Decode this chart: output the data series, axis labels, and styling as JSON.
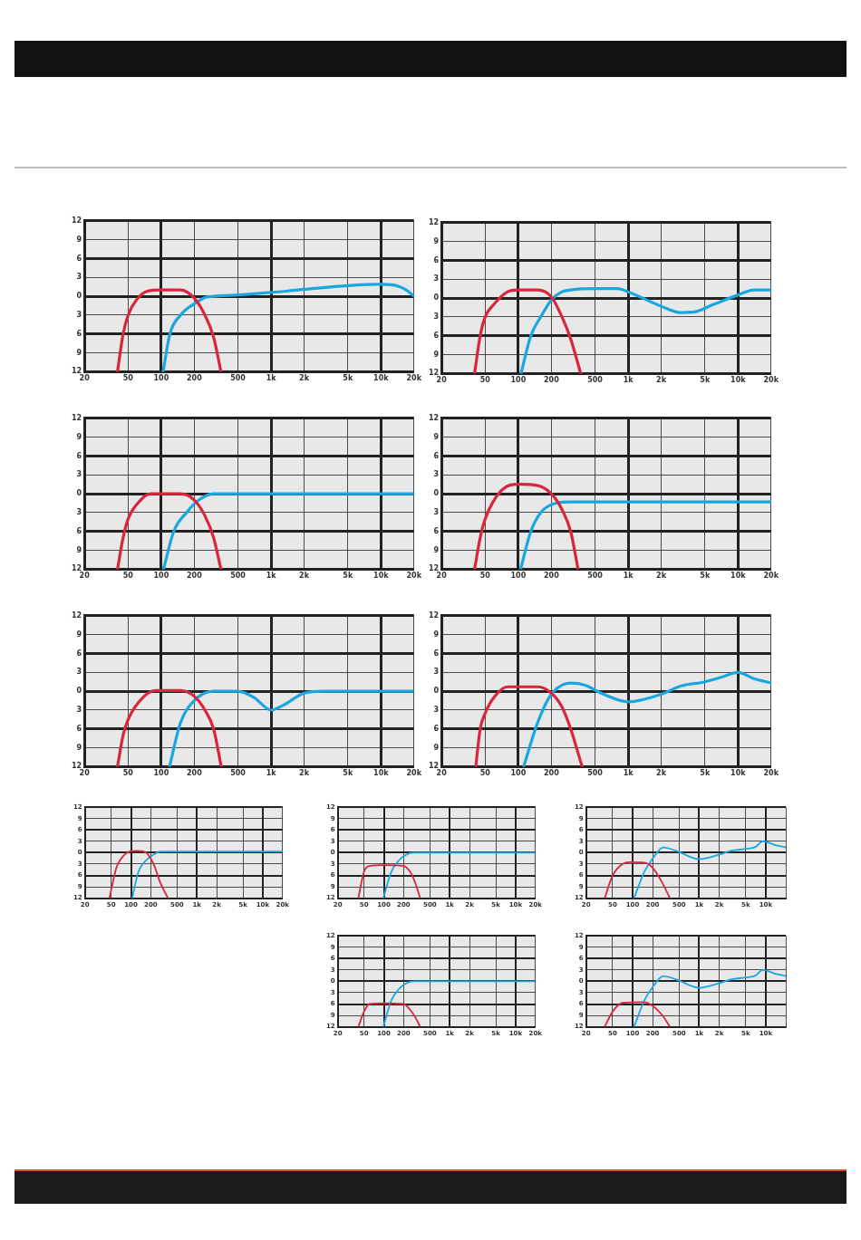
{
  "chart_data": [
    {
      "type": "line",
      "log": "x",
      "grid": true,
      "marker": "none",
      "xlim": [
        20,
        20000
      ],
      "xticks": [
        20,
        50,
        100,
        200,
        500,
        {
          "value": 1000,
          "label": "1k"
        },
        {
          "value": 2000,
          "label": "2k"
        },
        {
          "value": 5000,
          "label": "5k"
        },
        {
          "value": 10000,
          "label": "10k"
        },
        {
          "value": 20000,
          "label": "20k"
        }
      ],
      "ylim": [
        -12,
        12
      ],
      "yticks": [
        {
          "value": -12,
          "label": "12"
        },
        {
          "value": -9,
          "label": "9"
        },
        {
          "value": -6,
          "label": "6"
        },
        {
          "value": -3,
          "label": "3"
        },
        0,
        3,
        6,
        9,
        12
      ],
      "series": [
        {
          "color": "#d7263d",
          "x": [
            40,
            45,
            50,
            60,
            75,
            100,
            150,
            200,
            250,
            300,
            350
          ],
          "values": [
            -12,
            -6,
            -3,
            -0.5,
            0.8,
            1,
            1,
            -0.3,
            -3,
            -6.5,
            -12
          ]
        },
        {
          "color": "#1aa7e0",
          "x": [
            104,
            120,
            150,
            200,
            250,
            300,
            500,
            1000,
            2000,
            5000,
            10000,
            13000,
            17000,
            20000
          ],
          "values": [
            -12,
            -6,
            -3,
            -1.2,
            -0.2,
            0,
            0.2,
            0.6,
            1.1,
            1.7,
            1.9,
            1.8,
            1,
            0
          ]
        }
      ]
    },
    {
      "type": "line",
      "log": "x",
      "grid": true,
      "marker": "none",
      "xlim": [
        20,
        20000
      ],
      "xticks": [
        20,
        50,
        100,
        200,
        500,
        {
          "value": 1000,
          "label": "1k"
        },
        {
          "value": 2000,
          "label": "2k"
        },
        {
          "value": 5000,
          "label": "5k"
        },
        {
          "value": 10000,
          "label": "10k"
        },
        {
          "value": 20000,
          "label": "20k"
        }
      ],
      "ylim": [
        -12,
        12
      ],
      "yticks": [
        {
          "value": -12,
          "label": "12"
        },
        {
          "value": -9,
          "label": "9"
        },
        {
          "value": -6,
          "label": "6"
        },
        {
          "value": -3,
          "label": "3"
        },
        0,
        3,
        6,
        9,
        12
      ],
      "series": [
        {
          "color": "#d7263d",
          "x": [
            40,
            45,
            50,
            60,
            80,
            100,
            150,
            200,
            250,
            300,
            370
          ],
          "values": [
            -12,
            -6,
            -3,
            -1,
            1,
            1.3,
            1.3,
            0.2,
            -3,
            -6.5,
            -12
          ]
        },
        {
          "color": "#1aa7e0",
          "x": [
            106,
            130,
            160,
            200,
            250,
            300,
            500,
            800,
            1000,
            2000,
            3000,
            4000,
            6000,
            10000,
            14000,
            20000
          ],
          "values": [
            -12,
            -6,
            -3,
            -0.3,
            1,
            1.3,
            1.5,
            1.5,
            1,
            -1.3,
            -2.3,
            -2.2,
            -1,
            0.5,
            1.3,
            1.3
          ]
        }
      ]
    },
    {
      "type": "line",
      "log": "x",
      "grid": true,
      "marker": "none",
      "xlim": [
        20,
        20000
      ],
      "xticks": [
        20,
        50,
        100,
        200,
        500,
        {
          "value": 1000,
          "label": "1k"
        },
        {
          "value": 2000,
          "label": "2k"
        },
        {
          "value": 5000,
          "label": "5k"
        },
        {
          "value": 10000,
          "label": "10k"
        },
        {
          "value": 20000,
          "label": "20k"
        }
      ],
      "ylim": [
        -12,
        12
      ],
      "yticks": [
        {
          "value": -12,
          "label": "12"
        },
        {
          "value": -9,
          "label": "9"
        },
        {
          "value": -6,
          "label": "6"
        },
        {
          "value": -3,
          "label": "3"
        },
        0,
        3,
        6,
        9,
        12
      ],
      "series": [
        {
          "color": "#d7263d",
          "x": [
            40,
            45,
            50,
            65,
            80,
            150,
            200,
            250,
            300,
            350
          ],
          "values": [
            -12,
            -7,
            -4,
            -1,
            0,
            0,
            -1,
            -3.5,
            -7,
            -12
          ]
        },
        {
          "color": "#1aa7e0",
          "x": [
            105,
            130,
            170,
            220,
            300,
            20000
          ],
          "values": [
            -12,
            -6,
            -3,
            -1,
            0,
            0
          ]
        }
      ]
    },
    {
      "type": "line",
      "log": "x",
      "grid": true,
      "marker": "none",
      "xlim": [
        20,
        20000
      ],
      "xticks": [
        20,
        50,
        100,
        200,
        500,
        {
          "value": 1000,
          "label": "1k"
        },
        {
          "value": 2000,
          "label": "2k"
        },
        {
          "value": 5000,
          "label": "5k"
        },
        {
          "value": 10000,
          "label": "10k"
        },
        {
          "value": 20000,
          "label": "20k"
        }
      ],
      "ylim": [
        -12,
        12
      ],
      "yticks": [
        {
          "value": -12,
          "label": "12"
        },
        {
          "value": -9,
          "label": "9"
        },
        {
          "value": -6,
          "label": "6"
        },
        {
          "value": -3,
          "label": "3"
        },
        0,
        3,
        6,
        9,
        12
      ],
      "series": [
        {
          "color": "#d7263d",
          "x": [
            40,
            45,
            50,
            70,
            100,
            150,
            200,
            250,
            300,
            350
          ],
          "values": [
            -12,
            -7,
            -4,
            0.5,
            1.5,
            1.3,
            0,
            -2.5,
            -6,
            -12
          ]
        },
        {
          "color": "#1aa7e0",
          "x": [
            105,
            130,
            160,
            220,
            300,
            20000
          ],
          "values": [
            -12,
            -6,
            -3,
            -1.5,
            -1.3,
            -1.3
          ]
        }
      ]
    },
    {
      "type": "line",
      "log": "x",
      "grid": true,
      "marker": "none",
      "xlim": [
        20,
        20000
      ],
      "xticks": [
        20,
        50,
        100,
        200,
        500,
        {
          "value": 1000,
          "label": "1k"
        },
        {
          "value": 2000,
          "label": "2k"
        },
        {
          "value": 5000,
          "label": "5k"
        },
        {
          "value": 10000,
          "label": "10k"
        },
        {
          "value": 20000,
          "label": "20k"
        }
      ],
      "ylim": [
        -12,
        12
      ],
      "yticks": [
        {
          "value": -12,
          "label": "12"
        },
        {
          "value": -9,
          "label": "9"
        },
        {
          "value": -6,
          "label": "6"
        },
        {
          "value": -3,
          "label": "3"
        },
        0,
        3,
        6,
        9,
        12
      ],
      "series": [
        {
          "color": "#d7263d",
          "x": [
            40,
            45,
            50,
            70,
            90,
            150,
            200,
            250,
            300,
            352
          ],
          "values": [
            -12,
            -7,
            -4.5,
            -0.8,
            0.1,
            0.1,
            -0.8,
            -3,
            -6,
            -12
          ]
        },
        {
          "color": "#1aa7e0",
          "x": [
            119,
            150,
            200,
            300,
            500,
            700,
            1000,
            1300,
            2000,
            3000,
            20000
          ],
          "values": [
            -12,
            -5,
            -1.5,
            0,
            0,
            -1,
            -3,
            -2.2,
            -0.3,
            0,
            0
          ]
        }
      ]
    },
    {
      "type": "line",
      "log": "x",
      "grid": true,
      "marker": "none",
      "xlim": [
        20,
        20000
      ],
      "xticks": [
        20,
        50,
        100,
        200,
        500,
        {
          "value": 1000,
          "label": "1k"
        },
        {
          "value": 2000,
          "label": "2k"
        },
        {
          "value": 5000,
          "label": "5k"
        },
        {
          "value": 10000,
          "label": "10k"
        },
        {
          "value": 20000,
          "label": "20k"
        }
      ],
      "ylim": [
        -12,
        12
      ],
      "yticks": [
        {
          "value": -12,
          "label": "12"
        },
        {
          "value": -9,
          "label": "9"
        },
        {
          "value": -6,
          "label": "6"
        },
        {
          "value": -3,
          "label": "3"
        },
        0,
        3,
        6,
        9,
        12
      ],
      "series": [
        {
          "color": "#d7263d",
          "x": [
            41,
            45,
            50,
            60,
            80,
            150,
            200,
            250,
            300,
            381
          ],
          "values": [
            -12,
            -6,
            -3.5,
            -1,
            0.7,
            0.7,
            -0.3,
            -2.5,
            -6,
            -12
          ]
        },
        {
          "color": "#1aa7e0",
          "x": [
            112,
            150,
            200,
            300,
            400,
            600,
            1000,
            2000,
            3000,
            5000,
            7000,
            10000,
            14000,
            20000
          ],
          "values": [
            -12,
            -5,
            -0.5,
            1.3,
            1,
            -0.5,
            -1.7,
            -0.5,
            0.8,
            1.5,
            2.2,
            3,
            2,
            1.3
          ]
        }
      ]
    },
    {
      "type": "line",
      "log": "x",
      "grid": true,
      "marker": "none",
      "xlim": [
        20,
        20000
      ],
      "xticks": [
        20,
        50,
        100,
        200,
        500,
        {
          "value": 1000,
          "label": "1k"
        },
        {
          "value": 2000,
          "label": "2k"
        },
        {
          "value": 5000,
          "label": "5k"
        },
        {
          "value": 10000,
          "label": "10k"
        },
        {
          "value": 20000,
          "label": "20k"
        }
      ],
      "ylim": [
        -12,
        12
      ],
      "yticks": [
        {
          "value": -12,
          "label": "12"
        },
        {
          "value": -9,
          "label": "9"
        },
        {
          "value": -6,
          "label": "6"
        },
        {
          "value": -3,
          "label": "3"
        },
        0,
        3,
        6,
        9,
        12
      ],
      "series": [
        {
          "color": "#d7263d",
          "x": [
            47,
            60,
            80,
            100,
            130,
            170,
            220,
            280,
            364
          ],
          "values": [
            -12,
            -4,
            -0.5,
            0.4,
            0.5,
            0,
            -3,
            -8,
            -12
          ]
        },
        {
          "color": "#1aa7e0",
          "x": [
            104,
            130,
            170,
            220,
            280,
            20000
          ],
          "values": [
            -12,
            -5,
            -2,
            -0.5,
            0.3,
            0.3
          ]
        }
      ]
    },
    {
      "type": "line",
      "log": "x",
      "grid": true,
      "marker": "none",
      "xlim": [
        20,
        20000
      ],
      "xticks": [
        20,
        50,
        100,
        200,
        500,
        {
          "value": 1000,
          "label": "1k"
        },
        {
          "value": 2000,
          "label": "2k"
        },
        {
          "value": 5000,
          "label": "5k"
        },
        {
          "value": 10000,
          "label": "10k"
        },
        {
          "value": 20000,
          "label": "20k"
        }
      ],
      "ylim": [
        -12,
        12
      ],
      "yticks": [
        {
          "value": -12,
          "label": "12"
        },
        {
          "value": -9,
          "label": "9"
        },
        {
          "value": -6,
          "label": "6"
        },
        {
          "value": -3,
          "label": "3"
        },
        0,
        3,
        6,
        9,
        12
      ],
      "series": [
        {
          "color": "#d7263d",
          "x": [
            41,
            50,
            60,
            100,
            200,
            250,
            300,
            356
          ],
          "values": [
            -12,
            -5,
            -3.5,
            -3.3,
            -3.5,
            -5,
            -8,
            -12
          ]
        },
        {
          "color": "#1aa7e0",
          "x": [
            98,
            130,
            170,
            220,
            280,
            20000
          ],
          "values": [
            -12,
            -5,
            -2,
            -0.5,
            0,
            0
          ]
        }
      ]
    },
    {
      "type": "line",
      "log": "x",
      "grid": true,
      "marker": "none",
      "xlim": [
        20,
        20000
      ],
      "xticks": [
        20,
        50,
        100,
        200,
        500,
        {
          "value": 1000,
          "label": "1k"
        },
        {
          "value": 2000,
          "label": "2k"
        },
        {
          "value": 5000,
          "label": "5k"
        },
        {
          "value": 10000,
          "label": "10k"
        },
        {
          "value": 20000,
          "label": null
        }
      ],
      "ylim": [
        -12,
        12
      ],
      "yticks": [
        {
          "value": -12,
          "label": "12"
        },
        {
          "value": -9,
          "label": "9"
        },
        {
          "value": -6,
          "label": "6"
        },
        {
          "value": -3,
          "label": "3"
        },
        0,
        3,
        6,
        9,
        12
      ],
      "series": [
        {
          "color": "#d7263d",
          "x": [
            38,
            50,
            70,
            90,
            150,
            200,
            280,
            363
          ],
          "values": [
            -12,
            -6,
            -3,
            -2.5,
            -2.6,
            -4,
            -8,
            -12
          ]
        },
        {
          "color": "#1aa7e0",
          "x": [
            105,
            150,
            200,
            290,
            450,
            1000,
            2000,
            3000,
            5000,
            7000,
            9000,
            14000,
            20000
          ],
          "values": [
            -12,
            -5,
            -1.5,
            1.4,
            0.5,
            -1.7,
            -0.5,
            0.5,
            1,
            1.5,
            3,
            2,
            1.4
          ]
        }
      ]
    },
    {
      "type": "line",
      "log": "x",
      "grid": true,
      "marker": "none",
      "xlim": [
        20,
        20000
      ],
      "xticks": [
        20,
        50,
        100,
        200,
        500,
        {
          "value": 1000,
          "label": "1k"
        },
        {
          "value": 2000,
          "label": "2k"
        },
        {
          "value": 5000,
          "label": "5k"
        },
        {
          "value": 10000,
          "label": "10k"
        },
        {
          "value": 20000,
          "label": "20k"
        }
      ],
      "ylim": [
        -12,
        12
      ],
      "yticks": [
        {
          "value": -12,
          "label": "12"
        },
        {
          "value": -9,
          "label": "9"
        },
        {
          "value": -6,
          "label": "6"
        },
        {
          "value": -3,
          "label": "3"
        },
        0,
        3,
        6,
        9,
        12
      ],
      "series": [
        {
          "color": "#d7263d",
          "x": [
            41,
            50,
            60,
            100,
            200,
            250,
            300,
            356
          ],
          "values": [
            -12,
            -8,
            -6,
            -5.8,
            -6,
            -7.5,
            -9.5,
            -12
          ]
        },
        {
          "color": "#1aa7e0",
          "x": [
            98,
            130,
            170,
            220,
            280,
            20000
          ],
          "values": [
            -12,
            -5,
            -2,
            -0.5,
            0,
            0
          ]
        }
      ]
    },
    {
      "type": "line",
      "log": "x",
      "grid": true,
      "marker": "none",
      "xlim": [
        20,
        20000
      ],
      "xticks": [
        20,
        50,
        100,
        200,
        500,
        {
          "value": 1000,
          "label": "1k"
        },
        {
          "value": 2000,
          "label": "2k"
        },
        {
          "value": 5000,
          "label": "5k"
        },
        {
          "value": 10000,
          "label": "10k"
        },
        {
          "value": 20000,
          "label": null
        }
      ],
      "ylim": [
        -12,
        12
      ],
      "yticks": [
        {
          "value": -12,
          "label": "12"
        },
        {
          "value": -9,
          "label": "9"
        },
        {
          "value": -6,
          "label": "6"
        },
        {
          "value": -3,
          "label": "3"
        },
        0,
        3,
        6,
        9,
        12
      ],
      "series": [
        {
          "color": "#d7263d",
          "x": [
            38,
            50,
            70,
            150,
            200,
            280,
            363
          ],
          "values": [
            -12,
            -8,
            -5.7,
            -5.5,
            -6.5,
            -9,
            -12
          ]
        },
        {
          "color": "#1aa7e0",
          "x": [
            105,
            150,
            200,
            290,
            450,
            1000,
            2000,
            3000,
            5000,
            7000,
            9000,
            14000,
            20000
          ],
          "values": [
            -12,
            -5,
            -1.5,
            1.4,
            0.5,
            -1.7,
            -0.5,
            0.5,
            1,
            1.5,
            3,
            2,
            1.4
          ]
        }
      ]
    }
  ]
}
